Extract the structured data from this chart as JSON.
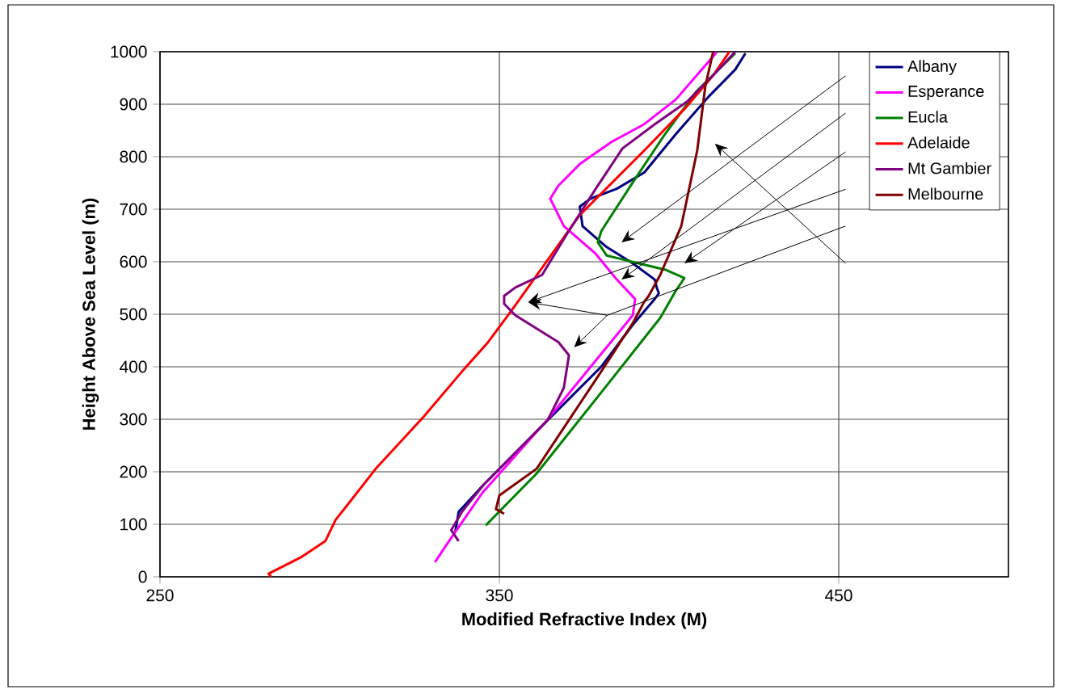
{
  "chart_data": {
    "type": "line",
    "xlabel": "Modified Refractive Index (M)",
    "ylabel": "Height Above Sea Level (m)",
    "xlim": [
      250,
      500
    ],
    "ylim": [
      0,
      1000
    ],
    "xticks": [
      250,
      350,
      450
    ],
    "yticks": [
      0,
      100,
      200,
      300,
      400,
      500,
      600,
      700,
      800,
      900,
      1000
    ],
    "grid": true,
    "legend": "top right",
    "marker": "none",
    "line_style": "solid",
    "series": [
      {
        "name": "Albany",
        "color": "#000080",
        "x": [
          337,
          338,
          345.3,
          364.2,
          380,
          389.3,
          395.9,
          397,
          396.4,
          395.8,
          389.3,
          381.6,
          374.5,
          373.7,
          376.8,
          384.6,
          392.7,
          402,
          411.6,
          419.5,
          422.5
        ],
        "values": [
          85,
          124,
          175,
          298,
          400,
          480,
          530,
          540,
          550,
          566,
          597,
          628,
          668,
          705,
          720,
          739,
          770,
          843,
          914,
          966,
          997
        ]
      },
      {
        "name": "Esperance",
        "color": "#ff00ff",
        "x": [
          331,
          335.8,
          345,
          364,
          378.4,
          389.3,
          390,
          384.6,
          378.4,
          369,
          365,
          367.4,
          373.7,
          383,
          392.7,
          402,
          413,
          414
        ],
        "values": [
          28,
          74,
          160,
          298,
          412,
          498,
          529,
          566,
          615,
          668,
          720,
          745,
          786,
          828,
          862,
          909,
          991,
          999
        ]
      },
      {
        "name": "Eucla",
        "color": "#008000",
        "x": [
          346,
          361,
          380,
          397.4,
          402,
          403.6,
          404.5,
          398.8,
          391,
          381.6,
          379,
          380,
          389.3,
          398.8,
          408,
          419.5
        ],
        "values": [
          98,
          197,
          351,
          493,
          545,
          560,
          569,
          585,
          597,
          612,
          637,
          658,
          751,
          843,
          924,
          997
        ]
      },
      {
        "name": "Adelaide",
        "color": "#ff0000",
        "x": [
          282.7,
          282,
          291.5,
          298.7,
          301.8,
          305,
          313.6,
          327.7,
          339,
          346.7,
          353.8,
          373.7,
          392.7,
          405,
          413,
          417.8
        ],
        "values": [
          0,
          6,
          37,
          68,
          109,
          135,
          206,
          305,
          391,
          447,
          509,
          689,
          812,
          894,
          955,
          1000
        ]
      },
      {
        "name": "Mt Gambier",
        "color": "#800080",
        "x": [
          338,
          335.8,
          339,
          345.3,
          364.2,
          369,
          370.5,
          367.4,
          354.7,
          351.4,
          351.4,
          354.7,
          362.6,
          370.4,
          378.4,
          386.3,
          395.8,
          405.3,
          413,
          419.5
        ],
        "values": [
          68,
          89,
          124,
          175,
          298,
          360,
          422,
          447,
          498,
          520,
          535,
          551,
          575,
          658,
          739,
          816,
          862,
          905,
          955,
          1000
        ]
      },
      {
        "name": "Melbourne",
        "color": "#800000",
        "x": [
          351.4,
          349,
          350,
          361,
          380,
          389.3,
          392.7,
          394,
          397.4,
          403.6,
          408.3,
          410.7,
          413
        ],
        "values": [
          120,
          129,
          155,
          206,
          391,
          483,
          524,
          535,
          575,
          668,
          812,
          935,
          1000
        ]
      }
    ]
  }
}
